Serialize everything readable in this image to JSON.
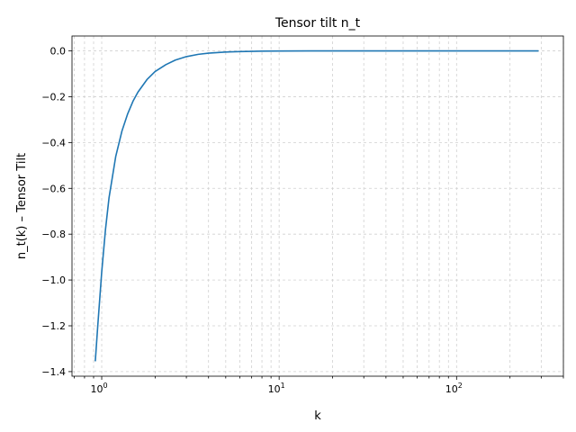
{
  "chart_data": {
    "type": "line",
    "title": "Tensor tilt n_t",
    "xlabel": "k",
    "ylabel": "n_t(k) – Tensor Tilt",
    "xscale": "log",
    "xlim": [
      0.68,
      400
    ],
    "ylim": [
      -1.42,
      0.065
    ],
    "grid": true,
    "grid_style": "dashed",
    "x_ticks": [
      {
        "value": 1,
        "base": "10",
        "exp": "0"
      },
      {
        "value": 10,
        "base": "10",
        "exp": "1"
      },
      {
        "value": 100,
        "base": "10",
        "exp": "2"
      }
    ],
    "y_ticks": [
      0.0,
      -0.2,
      -0.4,
      -0.6,
      -0.8,
      -1.0,
      -1.2,
      -1.4
    ],
    "y_tick_labels": [
      "0.0",
      "−0.2",
      "−0.4",
      "−0.6",
      "−0.8",
      "−1.0",
      "−1.2",
      "−1.4"
    ],
    "series": [
      {
        "color": "#1f77b4",
        "x": [
          0.92,
          0.95,
          1.0,
          1.05,
          1.1,
          1.2,
          1.3,
          1.4,
          1.5,
          1.6,
          1.8,
          2.0,
          2.3,
          2.6,
          3.0,
          3.5,
          4.0,
          5.0,
          6.0,
          7.0,
          8.0,
          10,
          15,
          20,
          30,
          50,
          100,
          200,
          290
        ],
        "y": [
          -1.355,
          -1.2,
          -0.965,
          -0.78,
          -0.64,
          -0.46,
          -0.35,
          -0.275,
          -0.22,
          -0.18,
          -0.125,
          -0.09,
          -0.06,
          -0.04,
          -0.025,
          -0.015,
          -0.01,
          -0.005,
          -0.003,
          -0.002,
          -0.001,
          -0.0005,
          -0.0002,
          -0.0001,
          0.0,
          0.0,
          0.0,
          0.0,
          0.0
        ]
      }
    ]
  }
}
